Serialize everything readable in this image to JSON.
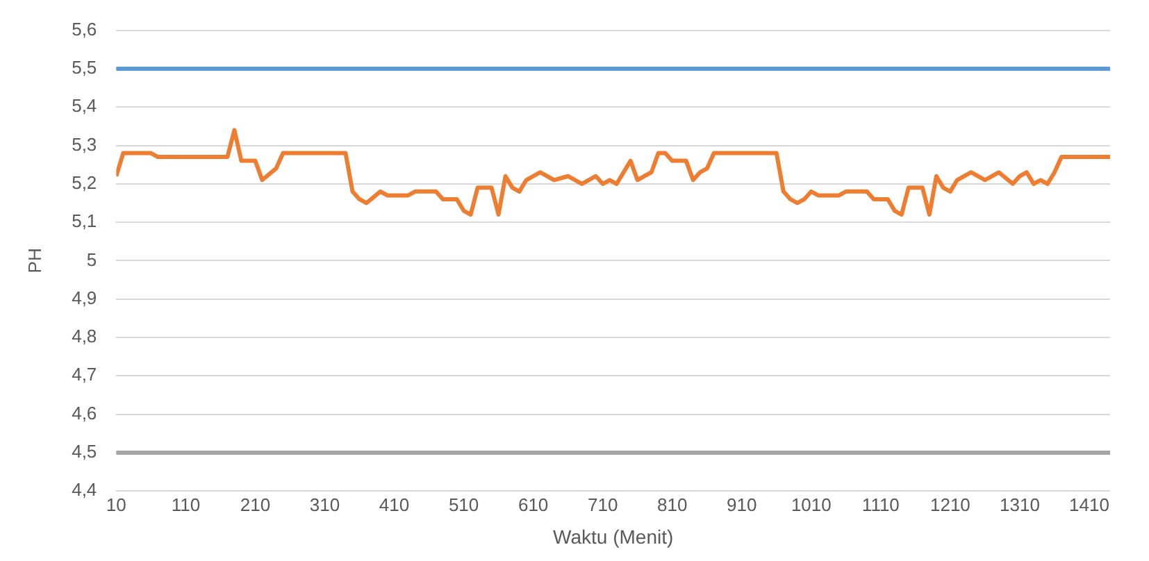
{
  "chart_data": {
    "type": "line",
    "xlabel": "Waktu (Menit)",
    "ylabel": "PH",
    "series": [
      {
        "color": "#ed7d31",
        "x": [
          10,
          20,
          60,
          70,
          170,
          180,
          190,
          210,
          220,
          240,
          250,
          340,
          350,
          360,
          370,
          390,
          400,
          430,
          440,
          470,
          480,
          500,
          510,
          520,
          530,
          550,
          560,
          570,
          580,
          590,
          600,
          620,
          640,
          660,
          680,
          700,
          710,
          720,
          730,
          750,
          760,
          770,
          780,
          790,
          800,
          810,
          830,
          840,
          850,
          860,
          870,
          960,
          970,
          980,
          990,
          1000,
          1010,
          1020,
          1050,
          1060,
          1090,
          1100,
          1120,
          1130,
          1140,
          1150,
          1170,
          1180,
          1190,
          1200,
          1210,
          1220,
          1240,
          1260,
          1280,
          1300,
          1310,
          1320,
          1330,
          1340,
          1350,
          1360,
          1370,
          1440
        ],
        "values": [
          5.22,
          5.28,
          5.28,
          5.27,
          5.27,
          5.34,
          5.26,
          5.26,
          5.21,
          5.24,
          5.28,
          5.28,
          5.18,
          5.16,
          5.15,
          5.18,
          5.17,
          5.17,
          5.18,
          5.18,
          5.16,
          5.16,
          5.13,
          5.12,
          5.19,
          5.19,
          5.12,
          5.22,
          5.19,
          5.18,
          5.21,
          5.23,
          5.21,
          5.22,
          5.2,
          5.22,
          5.2,
          5.21,
          5.2,
          5.26,
          5.21,
          5.22,
          5.23,
          5.28,
          5.28,
          5.26,
          5.26,
          5.21,
          5.23,
          5.24,
          5.28,
          5.28,
          5.18,
          5.16,
          5.15,
          5.16,
          5.18,
          5.17,
          5.17,
          5.18,
          5.18,
          5.16,
          5.16,
          5.13,
          5.12,
          5.19,
          5.19,
          5.12,
          5.22,
          5.19,
          5.18,
          5.21,
          5.23,
          5.21,
          5.23,
          5.2,
          5.22,
          5.23,
          5.2,
          5.21,
          5.2,
          5.23,
          5.27,
          5.27
        ]
      }
    ],
    "ref_lines": [
      {
        "axis": "y",
        "value": 5.5,
        "color": "#5b9bd5"
      },
      {
        "axis": "y",
        "value": 4.5,
        "color": "#a5a5a5"
      }
    ],
    "xlim": [
      10,
      1440
    ],
    "xticks": [
      10,
      110,
      210,
      310,
      410,
      510,
      610,
      710,
      810,
      910,
      1010,
      1110,
      1210,
      1310,
      1410
    ],
    "ylim": [
      4.4,
      5.6
    ],
    "yticks": [
      {
        "value": 4.4,
        "label": "4,4"
      },
      {
        "value": 4.5,
        "label": "4,5"
      },
      {
        "value": 4.6,
        "label": "4,6"
      },
      {
        "value": 4.7,
        "label": "4,7"
      },
      {
        "value": 4.8,
        "label": "4,8"
      },
      {
        "value": 4.9,
        "label": "4,9"
      },
      5,
      {
        "value": 5.1,
        "label": "5,1"
      },
      {
        "value": 5.2,
        "label": "5,2"
      },
      {
        "value": 5.3,
        "label": "5,3"
      },
      {
        "value": 5.4,
        "label": "5,4"
      },
      {
        "value": 5.5,
        "label": "5,5"
      },
      {
        "value": 5.6,
        "label": "5,6"
      }
    ],
    "grid": "y",
    "legend": false,
    "marker": "none",
    "line_style": "solid"
  }
}
